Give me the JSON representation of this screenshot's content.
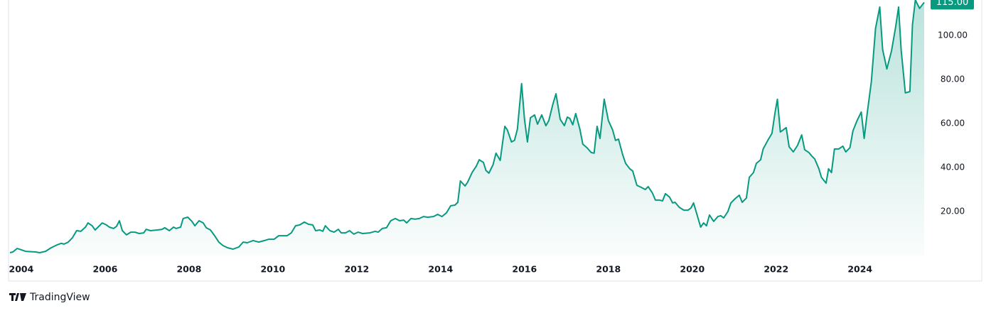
{
  "chart_data": {
    "type": "line",
    "color": "#089981",
    "area": true,
    "x": [
      2003.73,
      2003.8,
      2003.9,
      2004.0,
      2004.1,
      2004.34,
      2004.44,
      2004.58,
      2004.71,
      2004.85,
      2004.95,
      2005.02,
      2005.12,
      2005.22,
      2005.32,
      2005.42,
      2005.53,
      2005.59,
      2005.69,
      2005.76,
      2005.83,
      2005.93,
      2006.03,
      2006.1,
      2006.2,
      2006.27,
      2006.34,
      2006.41,
      2006.51,
      2006.61,
      2006.71,
      2006.81,
      2006.92,
      2006.98,
      2007.08,
      2007.25,
      2007.36,
      2007.42,
      2007.53,
      2007.63,
      2007.69,
      2007.8,
      2007.86,
      2007.97,
      2008.07,
      2008.14,
      2008.24,
      2008.34,
      2008.41,
      2008.51,
      2008.61,
      2008.71,
      2008.81,
      2008.92,
      2009.05,
      2009.19,
      2009.29,
      2009.39,
      2009.53,
      2009.66,
      2009.8,
      2009.9,
      2010.03,
      2010.14,
      2010.24,
      2010.34,
      2010.44,
      2010.54,
      2010.64,
      2010.75,
      2010.85,
      2010.95,
      2011.02,
      2011.12,
      2011.19,
      2011.25,
      2011.36,
      2011.46,
      2011.56,
      2011.63,
      2011.73,
      2011.83,
      2011.93,
      2012.03,
      2012.14,
      2012.31,
      2012.44,
      2012.51,
      2012.61,
      2012.71,
      2012.81,
      2012.92,
      2013.02,
      2013.12,
      2013.19,
      2013.29,
      2013.39,
      2013.49,
      2013.59,
      2013.69,
      2013.83,
      2013.93,
      2014.03,
      2014.14,
      2014.24,
      2014.34,
      2014.41,
      2014.47,
      2014.58,
      2014.64,
      2014.75,
      2014.85,
      2014.92,
      2015.02,
      2015.08,
      2015.15,
      2015.25,
      2015.32,
      2015.42,
      2015.53,
      2015.59,
      2015.69,
      2015.76,
      2015.83,
      2015.93,
      2016.0,
      2016.07,
      2016.14,
      2016.24,
      2016.31,
      2016.41,
      2016.51,
      2016.58,
      2016.68,
      2016.75,
      2016.85,
      2016.95,
      2017.02,
      2017.08,
      2017.15,
      2017.22,
      2017.32,
      2017.39,
      2017.49,
      2017.59,
      2017.66,
      2017.73,
      2017.8,
      2017.9,
      2018.0,
      2018.1,
      2018.17,
      2018.24,
      2018.34,
      2018.41,
      2018.51,
      2018.58,
      2018.68,
      2018.78,
      2018.88,
      2018.95,
      2019.05,
      2019.12,
      2019.22,
      2019.29,
      2019.36,
      2019.46,
      2019.53,
      2019.59,
      2019.69,
      2019.8,
      2019.9,
      2019.97,
      2020.03,
      2020.1,
      2020.2,
      2020.27,
      2020.34,
      2020.41,
      2020.51,
      2020.61,
      2020.68,
      2020.75,
      2020.85,
      2020.92,
      2021.02,
      2021.12,
      2021.19,
      2021.29,
      2021.36,
      2021.46,
      2021.53,
      2021.63,
      2021.69,
      2021.8,
      2021.9,
      2021.97,
      2022.03,
      2022.1,
      2022.17,
      2022.24,
      2022.31,
      2022.41,
      2022.51,
      2022.61,
      2022.68,
      2022.78,
      2022.85,
      2022.92,
      2023.02,
      2023.08,
      2023.19,
      2023.25,
      2023.32,
      2023.39,
      2023.49,
      2023.59,
      2023.66,
      2023.76,
      2023.83,
      2023.93,
      2024.03,
      2024.1,
      2024.17,
      2024.27,
      2024.37,
      2024.47,
      2024.54,
      2024.64,
      2024.75,
      2024.85,
      2024.92,
      2024.98,
      2025.08,
      2025.19,
      2025.25,
      2025.32,
      2025.42,
      2025.53
    ],
    "values": [
      1.3,
      1.6,
      3.2,
      2.6,
      1.9,
      1.6,
      1.3,
      1.9,
      3.5,
      4.8,
      5.5,
      5.2,
      6.1,
      8.1,
      11.3,
      11.0,
      12.9,
      14.8,
      13.5,
      11.6,
      12.9,
      14.8,
      13.9,
      12.9,
      12.3,
      13.2,
      15.8,
      11.3,
      9.4,
      10.6,
      10.6,
      10.0,
      10.3,
      11.9,
      11.3,
      11.6,
      11.9,
      12.6,
      11.3,
      12.9,
      12.3,
      12.9,
      16.8,
      17.4,
      15.5,
      13.5,
      15.8,
      14.8,
      12.6,
      11.6,
      9.0,
      6.1,
      4.5,
      3.5,
      2.9,
      3.9,
      6.1,
      5.8,
      6.8,
      6.1,
      6.8,
      7.4,
      7.4,
      9.0,
      9.0,
      9.0,
      10.3,
      13.5,
      13.9,
      15.2,
      14.2,
      13.9,
      11.3,
      11.6,
      11.0,
      13.5,
      11.3,
      10.6,
      11.9,
      10.3,
      10.3,
      11.3,
      9.7,
      10.6,
      10.0,
      10.3,
      11.0,
      10.6,
      12.3,
      12.6,
      15.8,
      16.8,
      15.8,
      16.1,
      14.8,
      16.8,
      16.5,
      16.8,
      17.7,
      17.4,
      17.7,
      18.7,
      17.7,
      19.4,
      22.6,
      22.9,
      24.2,
      33.9,
      31.6,
      33.2,
      37.7,
      40.6,
      43.5,
      42.3,
      38.7,
      37.4,
      41.3,
      46.5,
      43.2,
      58.7,
      57.1,
      51.6,
      52.3,
      57.4,
      78.1,
      61.9,
      51.6,
      62.6,
      63.9,
      59.7,
      63.9,
      59.0,
      61.3,
      69.0,
      73.5,
      61.9,
      59.0,
      62.9,
      62.3,
      59.4,
      64.5,
      57.4,
      50.6,
      49.0,
      46.8,
      46.5,
      58.7,
      53.2,
      71.0,
      61.3,
      57.1,
      52.3,
      52.9,
      45.8,
      41.9,
      39.4,
      38.4,
      31.9,
      31.0,
      30.0,
      31.3,
      28.4,
      25.2,
      25.2,
      24.8,
      28.1,
      26.5,
      23.9,
      24.2,
      21.9,
      20.6,
      20.6,
      21.6,
      23.9,
      19.4,
      12.9,
      14.8,
      13.5,
      18.4,
      15.5,
      17.7,
      18.1,
      17.1,
      20.0,
      23.9,
      25.8,
      27.4,
      24.2,
      26.1,
      35.5,
      37.7,
      41.9,
      43.5,
      48.4,
      52.3,
      55.5,
      64.5,
      71.0,
      56.1,
      57.1,
      58.1,
      49.4,
      47.1,
      50.0,
      54.8,
      48.1,
      46.8,
      45.2,
      43.9,
      39.4,
      35.5,
      32.9,
      39.4,
      37.7,
      48.4,
      48.4,
      49.7,
      47.1,
      49.0,
      56.5,
      61.3,
      65.2,
      53.2,
      64.5,
      79.0,
      103.2,
      112.9,
      93.5,
      84.8,
      92.9,
      103.9,
      112.9,
      93.5,
      73.9,
      74.5,
      104.8,
      116.1,
      112.3,
      115.0
    ],
    "xlim": [
      2003.73,
      2025.53
    ],
    "xticks": [
      2004,
      2006,
      2008,
      2010,
      2012,
      2014,
      2016,
      2018,
      2020,
      2022,
      2024
    ],
    "ylim": [
      0,
      116.1
    ],
    "yticks": [
      {
        "value": 20,
        "label": "20.00"
      },
      {
        "value": 40,
        "label": "40.00"
      },
      {
        "value": 60,
        "label": "60.00"
      },
      {
        "value": 80,
        "label": "80.00"
      },
      {
        "value": 100,
        "label": "100.00"
      }
    ],
    "last_price": {
      "value": 115,
      "label": "115.00"
    },
    "watermark": "TradingView"
  }
}
